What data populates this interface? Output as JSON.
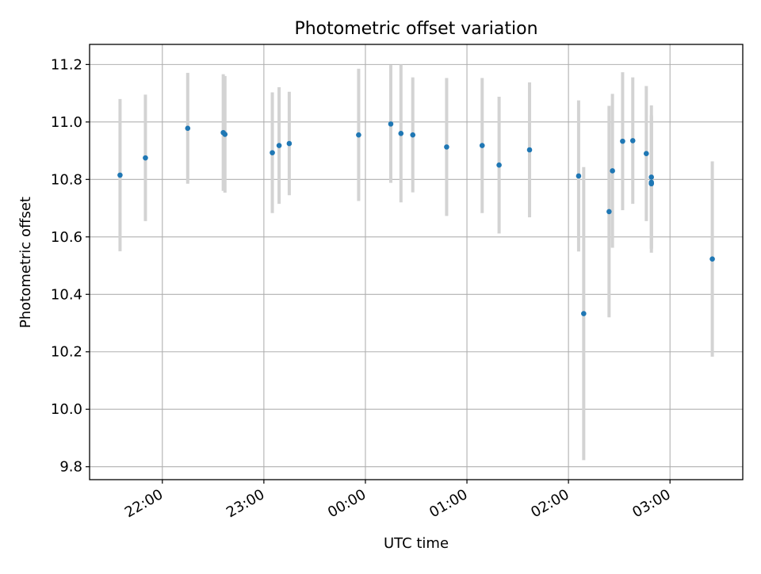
{
  "chart_data": {
    "type": "scatter",
    "title": "Photometric offset variation",
    "xlabel": "UTC time",
    "ylabel": "Photometric offset",
    "x_ticks": [
      "22:00",
      "23:00",
      "00:00",
      "01:00",
      "02:00",
      "03:00"
    ],
    "y_ticks": [
      "9.8",
      "10.0",
      "10.2",
      "10.4",
      "10.6",
      "10.8",
      "11.0",
      "11.2"
    ],
    "xlim": [
      "21:17",
      "03:43"
    ],
    "ylim": [
      9.755,
      11.27
    ],
    "grid": true,
    "colors": {
      "point": "#1f77b4",
      "errorbar": "#d3d3d3",
      "grid": "#b0b0b0"
    },
    "points": [
      {
        "t": "21:35",
        "y": 10.815,
        "err": 0.265
      },
      {
        "t": "21:50",
        "y": 10.875,
        "err": 0.22
      },
      {
        "t": "22:15",
        "y": 10.978,
        "err": 0.193
      },
      {
        "t": "22:36",
        "y": 10.963,
        "err": 0.203
      },
      {
        "t": "22:37",
        "y": 10.957,
        "err": 0.203
      },
      {
        "t": "23:05",
        "y": 10.893,
        "err": 0.21
      },
      {
        "t": "23:09",
        "y": 10.918,
        "err": 0.203
      },
      {
        "t": "23:15",
        "y": 10.925,
        "err": 0.18
      },
      {
        "t": "23:56",
        "y": 10.955,
        "err": 0.23
      },
      {
        "t": "00:15",
        "y": 10.993,
        "err": 0.205
      },
      {
        "t": "00:21",
        "y": 10.96,
        "err": 0.24
      },
      {
        "t": "00:28",
        "y": 10.955,
        "err": 0.2
      },
      {
        "t": "00:48",
        "y": 10.913,
        "err": 0.24
      },
      {
        "t": "01:09",
        "y": 10.918,
        "err": 0.235
      },
      {
        "t": "01:19",
        "y": 10.85,
        "err": 0.238
      },
      {
        "t": "01:37",
        "y": 10.903,
        "err": 0.235
      },
      {
        "t": "02:06",
        "y": 10.812,
        "err": 0.263
      },
      {
        "t": "02:09",
        "y": 10.333,
        "err": 0.51
      },
      {
        "t": "02:24",
        "y": 10.688,
        "err": 0.368
      },
      {
        "t": "02:26",
        "y": 10.83,
        "err": 0.268
      },
      {
        "t": "02:32",
        "y": 10.933,
        "err": 0.24
      },
      {
        "t": "02:38",
        "y": 10.935,
        "err": 0.22
      },
      {
        "t": "02:46",
        "y": 10.89,
        "err": 0.235
      },
      {
        "t": "02:49",
        "y": 10.808,
        "err": 0.25
      },
      {
        "t": "02:49",
        "y": 10.79,
        "err": 0.23
      },
      {
        "t": "02:49",
        "y": 10.785,
        "err": 0.24
      },
      {
        "t": "03:25",
        "y": 10.523,
        "err": 0.34
      }
    ]
  }
}
